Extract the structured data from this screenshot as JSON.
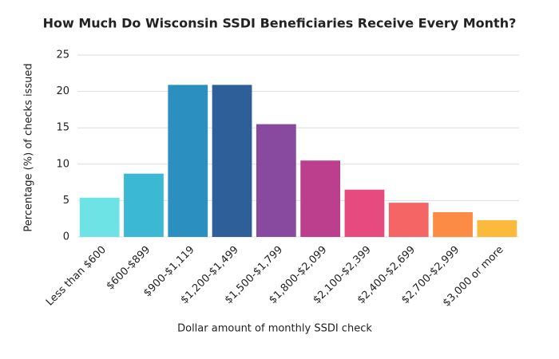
{
  "chart_data": {
    "type": "bar",
    "title": "How Much Do Wisconsin SSDI Beneficiaries Receive Every Month?",
    "x_label": "Dollar amount of monthly SSDI check",
    "y_label": "Percentage (%) of checks issued",
    "categories": [
      "Less than $600",
      "$600-$899",
      "$900-$1,119",
      "$1,200-$1,499",
      "$1,500-$1,799",
      "$1,800-$2,099",
      "$2,100-$2,399",
      "$2,400-$2,699",
      "$2,700-$2,999",
      "$3,000 or more"
    ],
    "values": [
      5.4,
      8.7,
      20.9,
      20.9,
      15.5,
      10.5,
      6.5,
      4.7,
      3.4,
      2.3
    ],
    "colors": [
      "#6de3e6",
      "#3bb8d4",
      "#2b8fbf",
      "#2e5f99",
      "#874a9e",
      "#bb3f8c",
      "#e64a7f",
      "#f56565",
      "#fb8b45",
      "#fcba3c"
    ],
    "ylim": [
      0,
      25
    ],
    "yticks": [
      0,
      5,
      10,
      15,
      20,
      25
    ],
    "grid": true
  }
}
